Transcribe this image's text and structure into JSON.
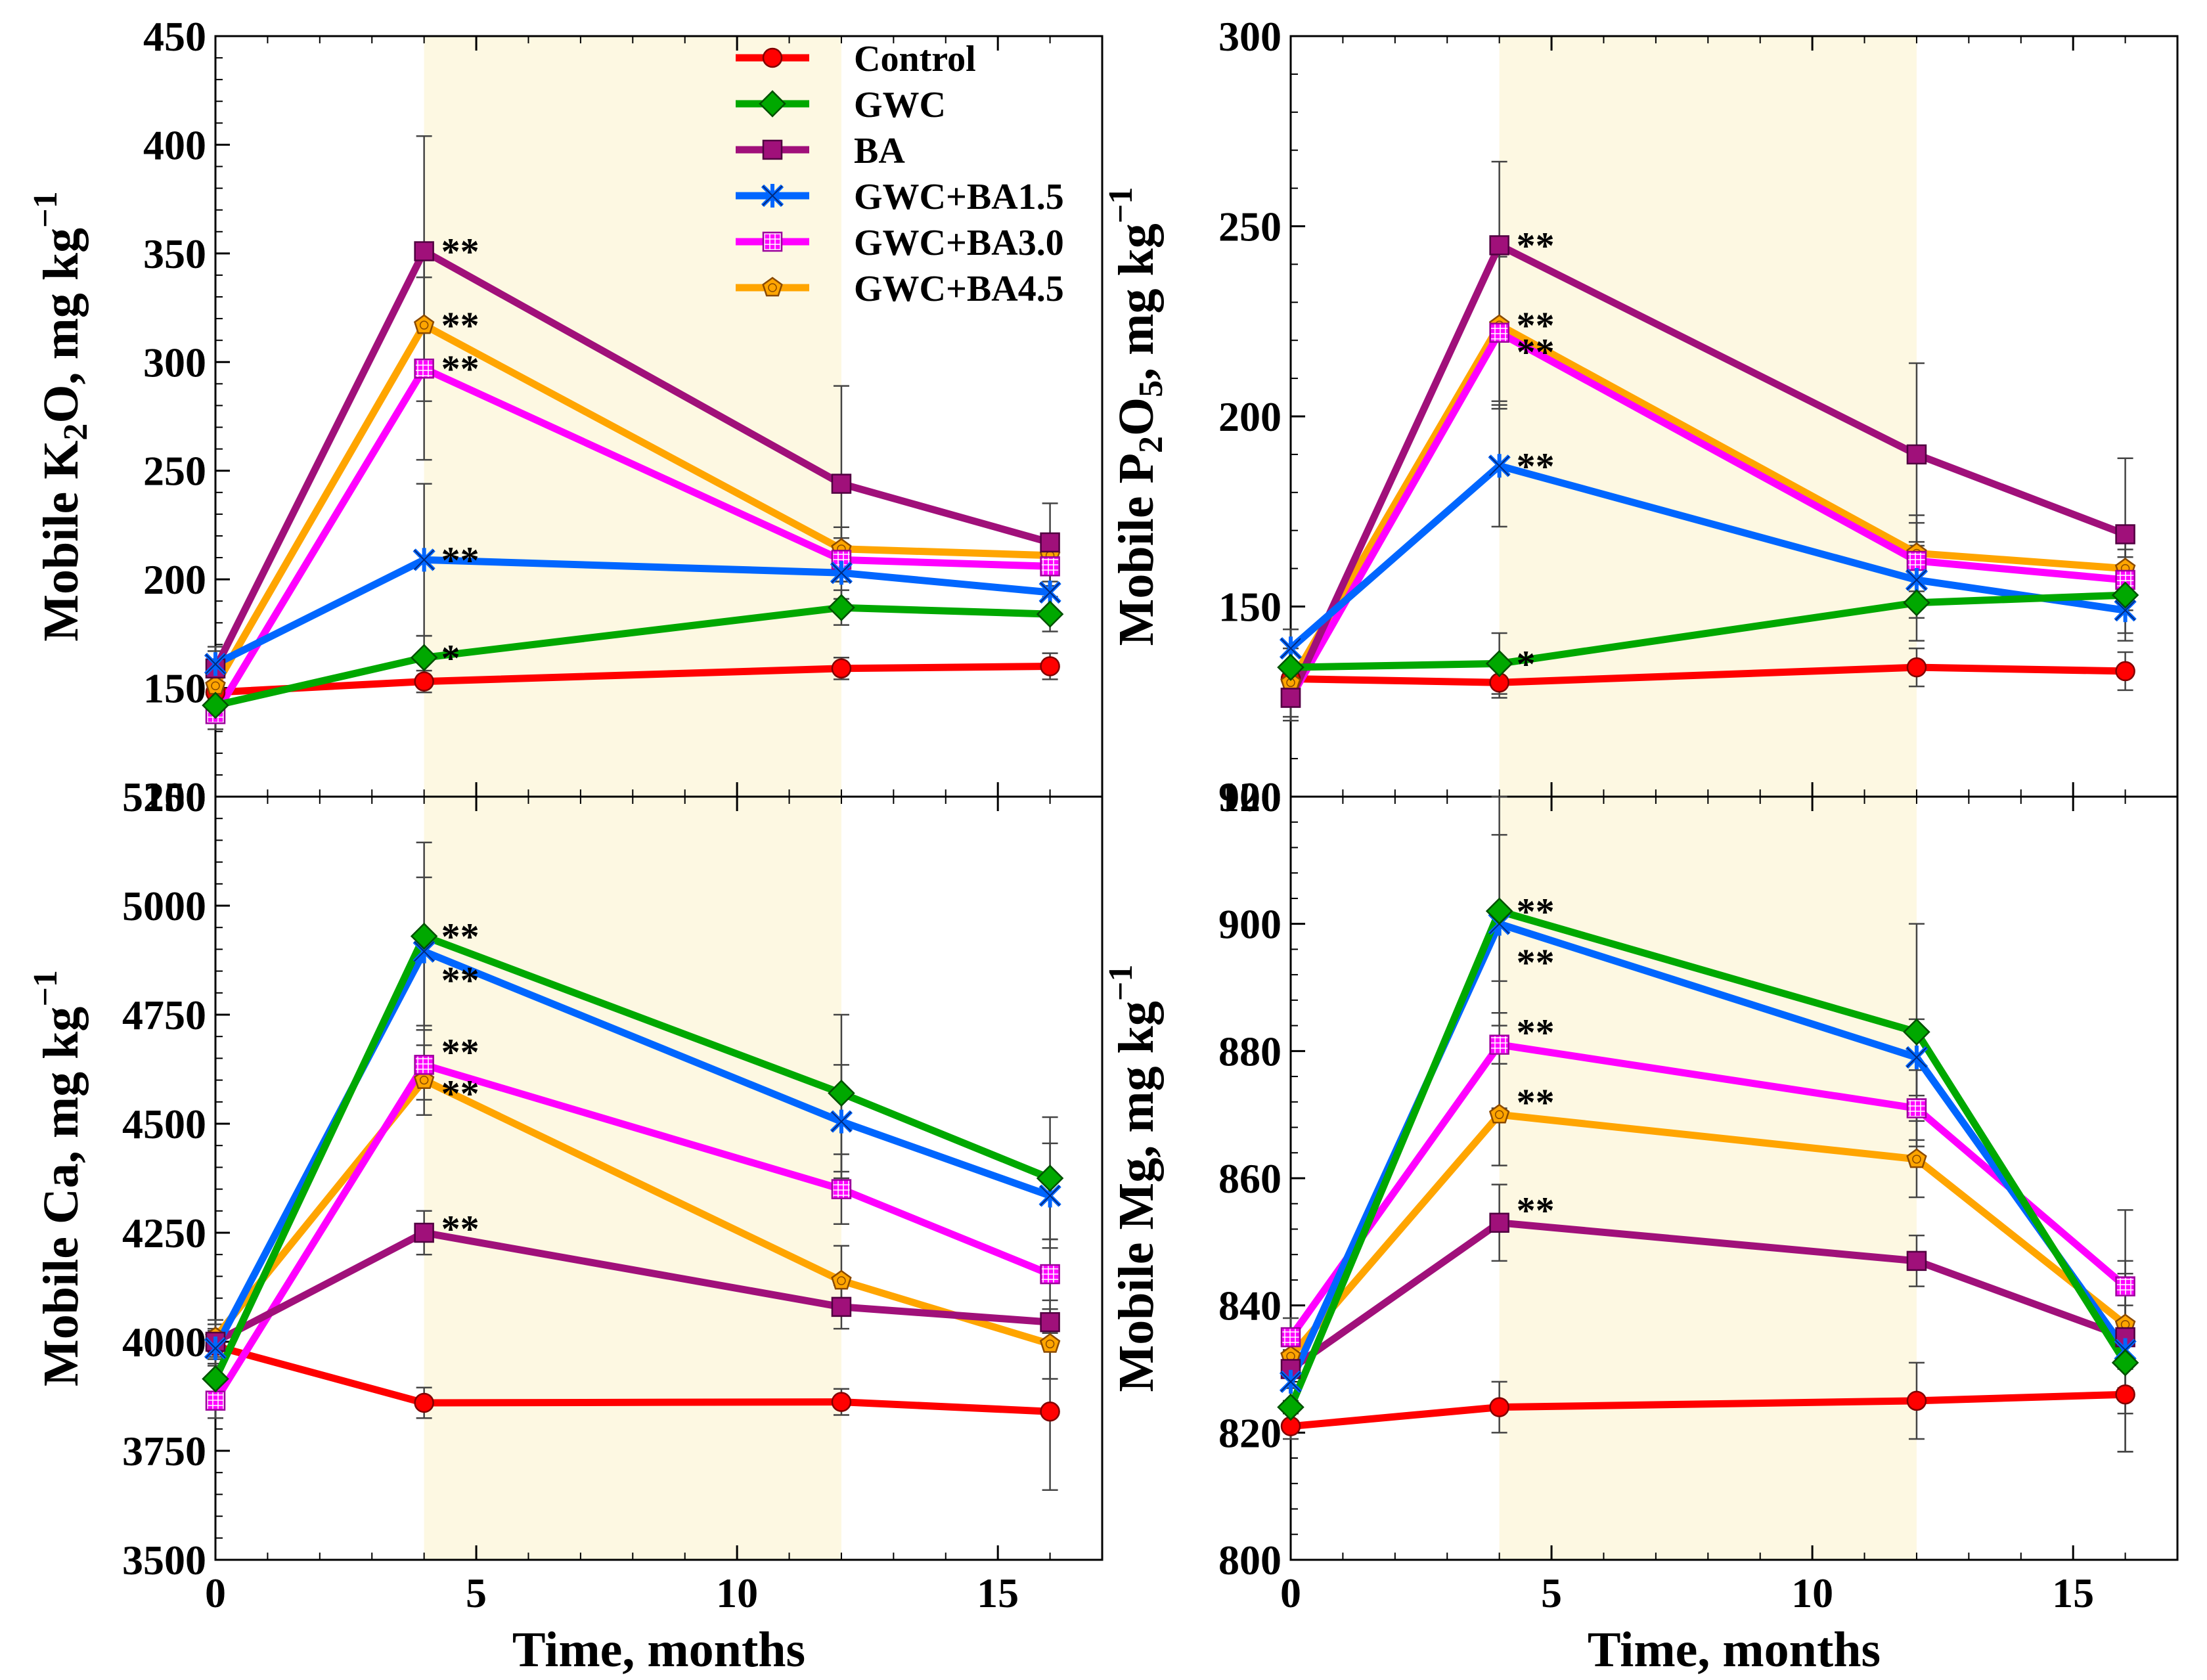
{
  "figure": {
    "shaded_range": [
      4,
      12
    ],
    "x_label": "Time, months",
    "x_ticks": [
      0,
      5,
      10,
      15
    ],
    "x_range": [
      0,
      17
    ]
  },
  "legend": [
    "Control",
    "GWC",
    "BA",
    "GWC+BA1.5",
    "GWC+BA3.0",
    "GWC+BA4.5"
  ],
  "series_styles": [
    {
      "name": "Control",
      "color": "#ff0000",
      "marker": "circle"
    },
    {
      "name": "GWC",
      "color": "#00a800",
      "marker": "diamond"
    },
    {
      "name": "BA",
      "color": "#a0107a",
      "marker": "square"
    },
    {
      "name": "GWC+BA1.5",
      "color": "#0066ff",
      "marker": "star"
    },
    {
      "name": "GWC+BA3.0",
      "color": "#ff00ff",
      "marker": "hatched-square"
    },
    {
      "name": "GWC+BA4.5",
      "color": "#ffa500",
      "marker": "pentagon"
    }
  ],
  "chart_data": [
    {
      "type": "line",
      "title": "",
      "xlabel": "Time, months",
      "ylabel": "Mobile K2O, mg kg-1",
      "ylabel_parts": {
        "prefix": "Mobile K",
        "sub": "2",
        "mid": "O, mg kg",
        "sup": "−1"
      },
      "xlim": [
        0,
        17
      ],
      "ylim": [
        100,
        450
      ],
      "yticks": [
        100,
        150,
        200,
        250,
        300,
        350,
        400,
        450
      ],
      "x": [
        0,
        4,
        12,
        16
      ],
      "series": [
        {
          "name": "Control",
          "values": [
            148,
            153,
            159,
            160
          ],
          "err": [
            5,
            5,
            5,
            6
          ]
        },
        {
          "name": "GWC",
          "values": [
            142,
            164,
            187,
            184
          ],
          "err": [
            6,
            10,
            8,
            8
          ]
        },
        {
          "name": "BA",
          "values": [
            159,
            351,
            244,
            217
          ],
          "err": [
            8,
            53,
            45,
            18
          ]
        },
        {
          "name": "GWC+BA1.5",
          "values": [
            161,
            209,
            203,
            194
          ],
          "err": [
            8,
            35,
            12,
            10
          ]
        },
        {
          "name": "GWC+BA3.0",
          "values": [
            138,
            297,
            209,
            206
          ],
          "err": [
            7,
            42,
            10,
            9
          ]
        },
        {
          "name": "GWC+BA4.5",
          "values": [
            151,
            317,
            214,
            211
          ],
          "err": [
            6,
            35,
            10,
            9
          ]
        }
      ],
      "annotations": [
        {
          "x": 4,
          "y": 351,
          "text": "**"
        },
        {
          "x": 4,
          "y": 317,
          "text": "**"
        },
        {
          "x": 4,
          "y": 297,
          "text": "**"
        },
        {
          "x": 4,
          "y": 209,
          "text": "**"
        },
        {
          "x": 4,
          "y": 164,
          "text": "*"
        }
      ]
    },
    {
      "type": "line",
      "title": "",
      "xlabel": "Time, months",
      "ylabel": "Mobile P2O5, mg kg-1",
      "ylabel_parts": {
        "prefix": "Mobile P",
        "sub": "2",
        "mid": "O",
        "sub2": "5",
        "tail": ", mg kg",
        "sup": "−1"
      },
      "xlim": [
        0,
        17
      ],
      "ylim": [
        100,
        300
      ],
      "yticks": [
        100,
        150,
        200,
        250,
        300
      ],
      "x": [
        0,
        4,
        12,
        16
      ],
      "series": [
        {
          "name": "Control",
          "values": [
            131,
            130,
            134,
            133
          ],
          "err": [
            4,
            4,
            5,
            5
          ]
        },
        {
          "name": "GWC",
          "values": [
            134,
            135,
            151,
            153
          ],
          "err": [
            5,
            8,
            10,
            10
          ]
        },
        {
          "name": "BA",
          "values": [
            126,
            245,
            190,
            169
          ],
          "err": [
            6,
            22,
            24,
            20
          ]
        },
        {
          "name": "GWC+BA1.5",
          "values": [
            139,
            187,
            157,
            149
          ],
          "err": [
            5,
            16,
            10,
            8
          ]
        },
        {
          "name": "GWC+BA3.0",
          "values": [
            126,
            222,
            162,
            157
          ],
          "err": [
            5,
            20,
            10,
            8
          ]
        },
        {
          "name": "GWC+BA4.5",
          "values": [
            130,
            224,
            164,
            160
          ],
          "err": [
            5,
            20,
            10,
            8
          ]
        }
      ],
      "annotations": [
        {
          "x": 4,
          "y": 245,
          "text": "**"
        },
        {
          "x": 4,
          "y": 224,
          "text": "**"
        },
        {
          "x": 4,
          "y": 217,
          "text": "**"
        },
        {
          "x": 4,
          "y": 187,
          "text": "**"
        },
        {
          "x": 4,
          "y": 135,
          "text": "*"
        }
      ]
    },
    {
      "type": "line",
      "title": "",
      "xlabel": "Time, months",
      "ylabel": "Mobile Ca, mg kg-1",
      "ylabel_parts": {
        "prefix": "Mobile Ca, mg kg",
        "sup": "−1"
      },
      "xlim": [
        0,
        17
      ],
      "ylim": [
        3500,
        5250
      ],
      "yticks": [
        3500,
        3750,
        4000,
        4250,
        4500,
        4750,
        5000,
        5250
      ],
      "x": [
        0,
        4,
        12,
        16
      ],
      "series": [
        {
          "name": "Control",
          "values": [
            3990,
            3860,
            3862,
            3840
          ],
          "err": [
            40,
            35,
            30,
            180
          ]
        },
        {
          "name": "GWC",
          "values": [
            3915,
            4930,
            4570,
            4375
          ],
          "err": [
            50,
            215,
            180,
            140
          ]
        },
        {
          "name": "BA",
          "values": [
            4000,
            4250,
            4080,
            4045
          ],
          "err": [
            40,
            50,
            50,
            50
          ]
        },
        {
          "name": "GWC+BA1.5",
          "values": [
            3985,
            4895,
            4505,
            4335
          ],
          "err": [
            40,
            170,
            130,
            120
          ]
        },
        {
          "name": "GWC+BA3.0",
          "values": [
            3865,
            4635,
            4350,
            4155
          ],
          "err": [
            40,
            80,
            80,
            80
          ]
        },
        {
          "name": "GWC+BA4.5",
          "values": [
            4010,
            4600,
            4140,
            3995
          ],
          "err": [
            40,
            80,
            80,
            80
          ]
        }
      ],
      "annotations": [
        {
          "x": 4,
          "y": 4930,
          "text": "**"
        },
        {
          "x": 4,
          "y": 4830,
          "text": "**"
        },
        {
          "x": 4,
          "y": 4665,
          "text": "**"
        },
        {
          "x": 4,
          "y": 4570,
          "text": "**"
        },
        {
          "x": 4,
          "y": 4260,
          "text": "**"
        }
      ]
    },
    {
      "type": "line",
      "title": "",
      "xlabel": "Time, months",
      "ylabel": "Mobile Mg, mg kg-1",
      "ylabel_parts": {
        "prefix": "Mobile Mg, mg kg",
        "sup": "−1"
      },
      "xlim": [
        0,
        17
      ],
      "ylim": [
        800,
        920
      ],
      "yticks": [
        800,
        820,
        840,
        860,
        880,
        900,
        920
      ],
      "x": [
        0,
        4,
        12,
        16
      ],
      "series": [
        {
          "name": "Control",
          "values": [
            821,
            824,
            825,
            826
          ],
          "err": [
            2,
            4,
            6,
            9
          ]
        },
        {
          "name": "GWC",
          "values": [
            824,
            902,
            883,
            831
          ],
          "err": [
            3,
            18,
            17,
            14
          ]
        },
        {
          "name": "BA",
          "values": [
            830,
            853,
            847,
            835
          ],
          "err": [
            3,
            6,
            4,
            5
          ]
        },
        {
          "name": "GWC+BA1.5",
          "values": [
            828,
            900,
            879,
            833
          ],
          "err": [
            3,
            14,
            6,
            10
          ]
        },
        {
          "name": "GWC+BA3.0",
          "values": [
            835,
            881,
            871,
            843
          ],
          "err": [
            3,
            10,
            6,
            12
          ]
        },
        {
          "name": "GWC+BA4.5",
          "values": [
            832,
            870,
            863,
            837
          ],
          "err": [
            3,
            8,
            6,
            10
          ]
        }
      ],
      "annotations": [
        {
          "x": 4,
          "y": 902,
          "text": "**"
        },
        {
          "x": 4,
          "y": 894,
          "text": "**"
        },
        {
          "x": 4,
          "y": 883,
          "text": "**"
        },
        {
          "x": 4,
          "y": 872,
          "text": "**"
        },
        {
          "x": 4,
          "y": 855,
          "text": "**"
        }
      ]
    }
  ]
}
